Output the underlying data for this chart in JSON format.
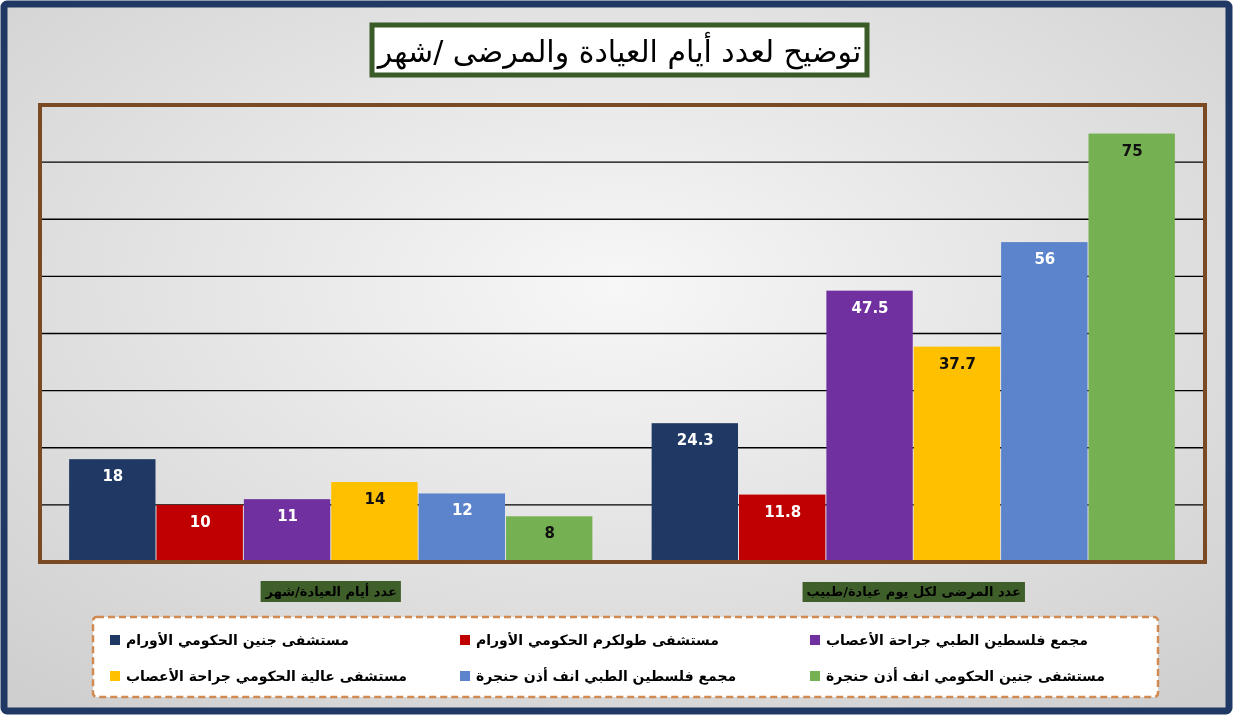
{
  "chart_data": {
    "type": "bar",
    "title": "توضيح لعدد أيام العيادة والمرضى /شهر",
    "categories": [
      "عدد أيام العيادة/شهر",
      "عدد المرضى لكل يوم عيادة/طبيب"
    ],
    "series": [
      {
        "name": "مستشفى جنين الحكومي الأورام",
        "color": "#1f3864",
        "values": [
          18,
          24.3
        ]
      },
      {
        "name": "مستشفى طولكرم الحكومي الأورام",
        "color": "#c00000",
        "values": [
          10,
          11.8
        ]
      },
      {
        "name": "مجمع فلسطين الطبي جراحة الأعصاب",
        "color": "#7030a0",
        "values": [
          11,
          47.5
        ]
      },
      {
        "name": "مستشفى عالية الحكومي جراحة الأعصاب",
        "color": "#ffc000",
        "values": [
          14,
          37.7
        ]
      },
      {
        "name": "مجمع فلسطين الطبي انف أذن حنجرة",
        "color": "#5b84cc",
        "values": [
          12,
          56
        ]
      },
      {
        "name": "مستشفى جنين الحكومي انف أذن حنجرة",
        "color": "#75b052",
        "values": [
          8,
          75
        ]
      }
    ],
    "ylim": [
      0,
      80
    ],
    "yticks": [
      {
        "value": 10,
        "label": null
      },
      {
        "value": 20,
        "label": null
      },
      {
        "value": 30,
        "label": null
      },
      {
        "value": 40,
        "label": null
      },
      {
        "value": 50,
        "label": null
      },
      {
        "value": 60,
        "label": null
      },
      {
        "value": 70,
        "label": null
      }
    ],
    "tick_labels": "x",
    "grid": "y",
    "data_labels": true,
    "legend": "bottom"
  }
}
